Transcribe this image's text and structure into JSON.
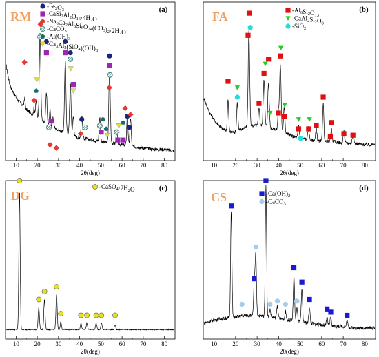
{
  "figure": {
    "background": "#ffffff",
    "line_color": "#000000"
  },
  "legend_sets": {
    "RM": [
      {
        "id": "fe2o3",
        "label": "-Fe",
        "sub": "2",
        "rest": "O",
        "sub2": "3",
        "marker": "circle",
        "color": "#1a237e"
      },
      {
        "id": "sodalite",
        "label": "-CaSi",
        "sub": "2",
        "rest": "Al",
        "sub2": "2",
        "rest2": "O",
        "sub3": "16",
        "rest3": "·4H",
        "sub4": "2",
        "rest4": "O",
        "marker": "square",
        "color": "#9c27b0"
      },
      {
        "id": "cancrinite",
        "label": "-Na",
        "sub": "6",
        "rest": "Ca",
        "sub2": "2",
        "rest2": "Al",
        "sub3": "6",
        "rest3": "Si",
        "sub4": "6",
        "rest4": "O",
        "sub5": "24",
        "rest5": "(CO",
        "sub6": "3",
        "rest6": ")",
        "sub7": "2",
        "rest7": "·2H",
        "sub8": "2",
        "rest8": "O",
        "marker": "diamond",
        "color": "#e53935"
      },
      {
        "id": "caco3",
        "label": "-CaCO",
        "sub": "3",
        "marker": "hatched",
        "color": "#2e7d74"
      },
      {
        "id": "aloh3",
        "label": "-Al(OH)",
        "sub": "3",
        "marker": "pentagon",
        "color": "#1e6b6b"
      },
      {
        "id": "hydrogarnet",
        "label": "-Ca",
        "sub": "3",
        "rest": "Al",
        "sub2": "2",
        "rest2": "(SiO",
        "sub3": "4",
        "rest3": ")(OH)",
        "sub4": "8",
        "marker": "triangle",
        "color": "#e8e030"
      }
    ],
    "FA": [
      {
        "id": "mullite",
        "label": "-Al",
        "sub": "6",
        "rest": "Si",
        "sub2": "2",
        "rest2": "O",
        "sub3": "13",
        "marker": "square",
        "color": "#e01010"
      },
      {
        "id": "anorthite",
        "label": "-CaAl",
        "sub": "2",
        "rest": "Si",
        "sub2": "2",
        "rest2": "O",
        "sub3": "8",
        "marker": "triangle-down",
        "color": "#22cc22"
      },
      {
        "id": "sio2",
        "label": "-SiO",
        "sub": "2",
        "marker": "circle",
        "color": "#22dddd"
      }
    ],
    "DG": [
      {
        "id": "gypsum",
        "label": "-CaSO",
        "sub": "4",
        "rest": "·2H",
        "sub2": "2",
        "rest2": "O",
        "marker": "circle",
        "color": "#e8e020"
      }
    ],
    "CS": [
      {
        "id": "caoh2",
        "label": "-Ca(OH)",
        "sub": "2",
        "marker": "square",
        "color": "#1a1ad0"
      },
      {
        "id": "caco3cs",
        "label": "-CaCO",
        "sub": "3",
        "marker": "circle",
        "color": "#a8cce8"
      }
    ]
  },
  "chart_data": [
    {
      "type": "line",
      "panel_name": "RM",
      "panel_letter": "(a)",
      "xlabel": "2θ(deg)",
      "xlim": [
        5,
        85
      ],
      "ylim": [
        0,
        100
      ],
      "xticks": [
        10,
        20,
        30,
        40,
        50,
        60,
        70,
        80
      ],
      "grid": false,
      "legend_position": "top-left",
      "baseline": [
        [
          5,
          62
        ],
        [
          7,
          48
        ],
        [
          9,
          42
        ],
        [
          11,
          38
        ],
        [
          13,
          35
        ],
        [
          15,
          32
        ],
        [
          17,
          30
        ],
        [
          19,
          28
        ],
        [
          21,
          26
        ],
        [
          23,
          24
        ],
        [
          26,
          22
        ],
        [
          29,
          20
        ],
        [
          32,
          18
        ],
        [
          35,
          17
        ],
        [
          38,
          15
        ],
        [
          42,
          14
        ],
        [
          46,
          13
        ],
        [
          50,
          12
        ],
        [
          55,
          11
        ],
        [
          60,
          10
        ],
        [
          65,
          9
        ],
        [
          70,
          8
        ],
        [
          75,
          7
        ],
        [
          80,
          7
        ],
        [
          85,
          6
        ]
      ],
      "peaks": [
        [
          14.0,
          6,
          0.25
        ],
        [
          18.5,
          5,
          0.25
        ],
        [
          19.5,
          10,
          0.3
        ],
        [
          21.3,
          55,
          0.35
        ],
        [
          24.3,
          20,
          0.3
        ],
        [
          26.0,
          10,
          0.3
        ],
        [
          27.5,
          6,
          0.3
        ],
        [
          33.2,
          45,
          0.35
        ],
        [
          35.6,
          32,
          0.35
        ],
        [
          37.0,
          12,
          0.3
        ],
        [
          41.0,
          14,
          0.35
        ],
        [
          49.5,
          15,
          0.3
        ],
        [
          54.1,
          45,
          0.35
        ],
        [
          57.5,
          8,
          0.3
        ],
        [
          62.5,
          20,
          0.3
        ],
        [
          64.0,
          18,
          0.3
        ]
      ],
      "markers": [
        {
          "x": 14.0,
          "y": 62,
          "kind": "cancrinite"
        },
        {
          "x": 18.5,
          "y": 38,
          "kind": "cancrinite"
        },
        {
          "x": 19.5,
          "y": 44,
          "kind": "aloh3"
        },
        {
          "x": 19.8,
          "y": 51,
          "kind": "hydrogarnet"
        },
        {
          "x": 21.3,
          "y": 78,
          "kind": "caco3"
        },
        {
          "x": 21.5,
          "y": 86,
          "kind": "cancrinite"
        },
        {
          "x": 24.3,
          "y": 75,
          "kind": "fe2o3"
        },
        {
          "x": 24.3,
          "y": 68,
          "kind": "sodalite"
        },
        {
          "x": 25.5,
          "y": 21,
          "kind": "caco3"
        },
        {
          "x": 26.5,
          "y": 25,
          "kind": "sodalite"
        },
        {
          "x": 26.0,
          "y": 10,
          "kind": "cancrinite"
        },
        {
          "x": 29.0,
          "y": 8,
          "kind": "cancrinite"
        },
        {
          "x": 33.2,
          "y": 75,
          "kind": "fe2o3"
        },
        {
          "x": 33.2,
          "y": 68,
          "kind": "sodalite"
        },
        {
          "x": 35.6,
          "y": 64,
          "kind": "caco3"
        },
        {
          "x": 35.6,
          "y": 68,
          "kind": "fe2o3"
        },
        {
          "x": 35.8,
          "y": 58,
          "kind": "hydrogarnet"
        },
        {
          "x": 37.0,
          "y": 48,
          "kind": "sodalite"
        },
        {
          "x": 37.0,
          "y": 44,
          "kind": "hydrogarnet"
        },
        {
          "x": 41.0,
          "y": 26,
          "kind": "fe2o3"
        },
        {
          "x": 40.5,
          "y": 17,
          "kind": "cancrinite"
        },
        {
          "x": 42.5,
          "y": 21,
          "kind": "caco3"
        },
        {
          "x": 49.5,
          "y": 22,
          "kind": "caco3"
        },
        {
          "x": 50.2,
          "y": 18,
          "kind": "sodalite"
        },
        {
          "x": 51.0,
          "y": 26,
          "kind": "aloh3"
        },
        {
          "x": 52.5,
          "y": 20,
          "kind": "aloh3"
        },
        {
          "x": 53.0,
          "y": 16,
          "kind": "hydrogarnet"
        },
        {
          "x": 54.1,
          "y": 66,
          "kind": "fe2o3"
        },
        {
          "x": 54.1,
          "y": 60,
          "kind": "sodalite"
        },
        {
          "x": 54.3,
          "y": 54,
          "kind": "caco3"
        },
        {
          "x": 54.0,
          "y": 46,
          "kind": "cancrinite"
        },
        {
          "x": 57.5,
          "y": 18,
          "kind": "caco3"
        },
        {
          "x": 58.5,
          "y": 22,
          "kind": "hydrogarnet"
        },
        {
          "x": 58.0,
          "y": 13,
          "kind": "sodalite"
        },
        {
          "x": 60.5,
          "y": 24,
          "kind": "aloh3"
        },
        {
          "x": 60.5,
          "y": 13,
          "kind": "sodalite"
        },
        {
          "x": 61.5,
          "y": 33,
          "kind": "cancrinite"
        },
        {
          "x": 62.5,
          "y": 28,
          "kind": "fe2o3"
        },
        {
          "x": 63.5,
          "y": 21,
          "kind": "fe2o3"
        },
        {
          "x": 64.0,
          "y": 29,
          "kind": "cancrinite"
        }
      ]
    },
    {
      "type": "line",
      "panel_name": "FA",
      "panel_letter": "(b)",
      "xlabel": "2θ(deg)",
      "xlim": [
        5,
        85
      ],
      "ylim": [
        0,
        100
      ],
      "xticks": [
        10,
        20,
        30,
        40,
        50,
        60,
        70,
        80
      ],
      "grid": false,
      "legend_position": "top-right",
      "baseline": [
        [
          5,
          40
        ],
        [
          8,
          30
        ],
        [
          11,
          24
        ],
        [
          14,
          20
        ],
        [
          17,
          18
        ],
        [
          20,
          18
        ],
        [
          23,
          20
        ],
        [
          26,
          22
        ],
        [
          29,
          22
        ],
        [
          32,
          22
        ],
        [
          35,
          21
        ],
        [
          38,
          20
        ],
        [
          41,
          19
        ],
        [
          44,
          17
        ],
        [
          47,
          15
        ],
        [
          50,
          14
        ],
        [
          55,
          13
        ],
        [
          60,
          12
        ],
        [
          65,
          12
        ],
        [
          70,
          11
        ],
        [
          75,
          11
        ],
        [
          80,
          10
        ],
        [
          85,
          10
        ]
      ],
      "peaks": [
        [
          16.5,
          20,
          0.3
        ],
        [
          20.8,
          18,
          0.3
        ],
        [
          26.2,
          60,
          0.35
        ],
        [
          30.9,
          12,
          0.3
        ],
        [
          33.2,
          30,
          0.35
        ],
        [
          35.3,
          28,
          0.35
        ],
        [
          39.9,
          12,
          0.3
        ],
        [
          40.8,
          42,
          0.35
        ],
        [
          42.6,
          16,
          0.3
        ],
        [
          49.3,
          8,
          0.3
        ],
        [
          53.9,
          8,
          0.3
        ],
        [
          57.5,
          8,
          0.3
        ],
        [
          60.7,
          24,
          0.3
        ],
        [
          64.5,
          8,
          0.3
        ],
        [
          70.3,
          8,
          0.3
        ],
        [
          74.5,
          6,
          0.3
        ]
      ],
      "markers": [
        {
          "x": 16.5,
          "y": 50,
          "kind": "mullite"
        },
        {
          "x": 20.8,
          "y": 46,
          "kind": "anorthite"
        },
        {
          "x": 20.8,
          "y": 40,
          "kind": "sio2"
        },
        {
          "x": 25.8,
          "y": 79,
          "kind": "mullite"
        },
        {
          "x": 26.3,
          "y": 93,
          "kind": "mullite"
        },
        {
          "x": 26.8,
          "y": 84,
          "kind": "sio2"
        },
        {
          "x": 30.9,
          "y": 36,
          "kind": "mullite"
        },
        {
          "x": 33.2,
          "y": 55,
          "kind": "mullite"
        },
        {
          "x": 33.8,
          "y": 61,
          "kind": "anorthite"
        },
        {
          "x": 35.3,
          "y": 64,
          "kind": "mullite"
        },
        {
          "x": 36.0,
          "y": 30,
          "kind": "anorthite"
        },
        {
          "x": 39.9,
          "y": 30,
          "kind": "mullite"
        },
        {
          "x": 40.8,
          "y": 66,
          "kind": "mullite"
        },
        {
          "x": 41.0,
          "y": 71,
          "kind": "anorthite"
        },
        {
          "x": 42.6,
          "y": 28,
          "kind": "mullite"
        },
        {
          "x": 42.8,
          "y": 35,
          "kind": "anorthite"
        },
        {
          "x": 49.3,
          "y": 20,
          "kind": "mullite"
        },
        {
          "x": 49.3,
          "y": 26,
          "kind": "anorthite"
        },
        {
          "x": 50.2,
          "y": 14,
          "kind": "sio2"
        },
        {
          "x": 53.9,
          "y": 20,
          "kind": "mullite"
        },
        {
          "x": 54.3,
          "y": 26,
          "kind": "anorthite"
        },
        {
          "x": 57.5,
          "y": 22,
          "kind": "mullite"
        },
        {
          "x": 60.7,
          "y": 40,
          "kind": "mullite"
        },
        {
          "x": 64.0,
          "y": 15,
          "kind": "mullite"
        },
        {
          "x": 64.5,
          "y": 24,
          "kind": "mullite"
        },
        {
          "x": 70.3,
          "y": 17,
          "kind": "mullite"
        },
        {
          "x": 74.5,
          "y": 16,
          "kind": "mullite"
        }
      ]
    },
    {
      "type": "line",
      "panel_name": "DG",
      "panel_letter": "(c)",
      "xlabel": "2θ(deg)",
      "xlim": [
        5,
        85
      ],
      "ylim": [
        0,
        100
      ],
      "xticks": [
        10,
        20,
        30,
        40,
        50,
        60,
        70,
        80
      ],
      "grid": false,
      "legend_position": "top-right",
      "baseline": [
        [
          5,
          6
        ],
        [
          20,
          6
        ],
        [
          40,
          6
        ],
        [
          60,
          6
        ],
        [
          85,
          6
        ]
      ],
      "peaks": [
        [
          11.6,
          88,
          0.3
        ],
        [
          20.7,
          14,
          0.3
        ],
        [
          23.4,
          19,
          0.3
        ],
        [
          29.1,
          22,
          0.3
        ],
        [
          31.1,
          5,
          0.3
        ],
        [
          40.6,
          4,
          0.3
        ],
        [
          43.4,
          4,
          0.3
        ],
        [
          47.8,
          4,
          0.3
        ],
        [
          50.3,
          4,
          0.3
        ],
        [
          56.7,
          3,
          0.3
        ]
      ],
      "markers": [
        {
          "x": 11.6,
          "y": 100,
          "kind": "gypsum"
        },
        {
          "x": 20.7,
          "y": 25,
          "kind": "gypsum"
        },
        {
          "x": 23.4,
          "y": 30,
          "kind": "gypsum"
        },
        {
          "x": 29.1,
          "y": 33,
          "kind": "gypsum"
        },
        {
          "x": 31.1,
          "y": 16,
          "kind": "gypsum"
        },
        {
          "x": 40.6,
          "y": 15,
          "kind": "gypsum"
        },
        {
          "x": 43.4,
          "y": 15,
          "kind": "gypsum"
        },
        {
          "x": 47.8,
          "y": 15,
          "kind": "gypsum"
        },
        {
          "x": 50.3,
          "y": 15,
          "kind": "gypsum"
        },
        {
          "x": 56.7,
          "y": 15,
          "kind": "gypsum"
        }
      ]
    },
    {
      "type": "line",
      "panel_name": "CS",
      "panel_letter": "(d)",
      "xlabel": "2θ(deg)",
      "xlim": [
        5,
        85
      ],
      "ylim": [
        0,
        100
      ],
      "xticks": [
        10,
        20,
        30,
        40,
        50,
        60,
        70,
        80
      ],
      "grid": false,
      "legend_position": "top-left",
      "baseline": [
        [
          5,
          10
        ],
        [
          10,
          12
        ],
        [
          15,
          13
        ],
        [
          20,
          14
        ],
        [
          25,
          15
        ],
        [
          30,
          15
        ],
        [
          35,
          14
        ],
        [
          40,
          13
        ],
        [
          45,
          12
        ],
        [
          50,
          11
        ],
        [
          55,
          10
        ],
        [
          60,
          9
        ],
        [
          65,
          8
        ],
        [
          70,
          8
        ],
        [
          75,
          7
        ],
        [
          80,
          7
        ],
        [
          85,
          7
        ]
      ],
      "peaks": [
        [
          18.0,
          68,
          0.3
        ],
        [
          28.7,
          22,
          0.3
        ],
        [
          29.4,
          38,
          0.3
        ],
        [
          34.1,
          84,
          0.3
        ],
        [
          36.0,
          5,
          0.3
        ],
        [
          39.4,
          8,
          0.3
        ],
        [
          43.2,
          5,
          0.3
        ],
        [
          47.1,
          28,
          0.3
        ],
        [
          48.5,
          8,
          0.3
        ],
        [
          50.8,
          20,
          0.3
        ],
        [
          54.3,
          10,
          0.3
        ],
        [
          62.5,
          5,
          0.3
        ],
        [
          64.2,
          6,
          0.3
        ],
        [
          71.8,
          4,
          0.3
        ]
      ],
      "markers": [
        {
          "x": 18.0,
          "y": 84,
          "kind": "caoh2"
        },
        {
          "x": 23.0,
          "y": 22,
          "kind": "caco3cs"
        },
        {
          "x": 28.7,
          "y": 38,
          "kind": "caoh2"
        },
        {
          "x": 29.4,
          "y": 58,
          "kind": "caco3cs"
        },
        {
          "x": 34.1,
          "y": 100,
          "kind": "caoh2"
        },
        {
          "x": 36.0,
          "y": 22,
          "kind": "caco3cs"
        },
        {
          "x": 39.4,
          "y": 24,
          "kind": "caco3cs"
        },
        {
          "x": 43.2,
          "y": 22,
          "kind": "caco3cs"
        },
        {
          "x": 47.1,
          "y": 45,
          "kind": "caoh2"
        },
        {
          "x": 48.5,
          "y": 24,
          "kind": "caco3cs"
        },
        {
          "x": 50.8,
          "y": 36,
          "kind": "caoh2"
        },
        {
          "x": 54.3,
          "y": 25,
          "kind": "caoh2"
        },
        {
          "x": 62.5,
          "y": 19,
          "kind": "caoh2"
        },
        {
          "x": 64.2,
          "y": 17,
          "kind": "caoh2"
        },
        {
          "x": 71.8,
          "y": 15,
          "kind": "caoh2"
        }
      ]
    }
  ]
}
